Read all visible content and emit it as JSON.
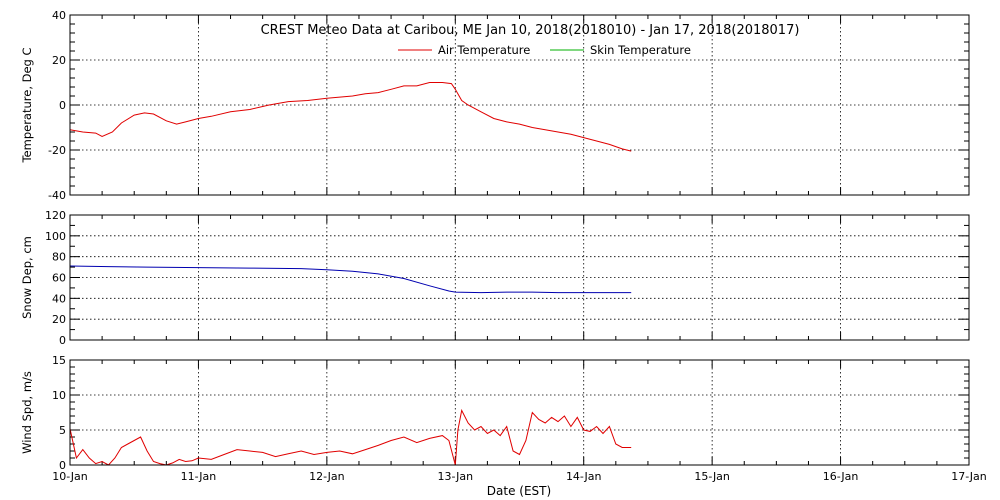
{
  "chart_data": [
    {
      "type": "line",
      "title": "CREST Meteo Data at Caribou, ME   Jan 10, 2018(2018010) - Jan 17, 2018(2018017)",
      "ylabel": "Temperature, Deg C",
      "ylim": [
        -40,
        40
      ],
      "yticks": [
        "-40",
        "-20",
        "0",
        "20",
        "40"
      ],
      "ytick_values": [
        -40,
        -20,
        0,
        20,
        40
      ],
      "grid": true,
      "legend": "top-center",
      "series": [
        {
          "name": "Air Temperature",
          "color": "#e00000",
          "x": [
            10.0,
            10.1,
            10.2,
            10.25,
            10.33,
            10.4,
            10.5,
            10.58,
            10.65,
            10.75,
            10.83,
            10.9,
            11.0,
            11.1,
            11.25,
            11.4,
            11.55,
            11.7,
            11.85,
            12.0,
            12.1,
            12.2,
            12.3,
            12.4,
            12.5,
            12.6,
            12.7,
            12.8,
            12.9,
            12.97,
            13.0,
            13.05,
            13.1,
            13.2,
            13.3,
            13.4,
            13.5,
            13.6,
            13.7,
            13.8,
            13.9,
            14.0,
            14.1,
            14.2,
            14.3,
            14.37
          ],
          "values": [
            -11,
            -12,
            -12.5,
            -14,
            -12,
            -8,
            -4.5,
            -3.5,
            -4,
            -7,
            -8.5,
            -7.5,
            -6,
            -5,
            -3,
            -2,
            0,
            1.5,
            2,
            3,
            3.5,
            4,
            5,
            5.5,
            7,
            8.5,
            8.5,
            10,
            10,
            9.5,
            7,
            2,
            0,
            -3,
            -6,
            -7.5,
            -8.5,
            -10,
            -11,
            -12,
            -13,
            -14.5,
            -16,
            -17.5,
            -19.5,
            -20.5
          ]
        },
        {
          "name": "Skin Temperature",
          "color": "#00b000",
          "x": [],
          "values": []
        }
      ]
    },
    {
      "type": "line",
      "ylabel": "Snow Dep, cm",
      "ylim": [
        0,
        120
      ],
      "yticks": [
        "0",
        "20",
        "40",
        "60",
        "80",
        "100",
        "120"
      ],
      "ytick_values": [
        0,
        20,
        40,
        60,
        80,
        100,
        120
      ],
      "grid": true,
      "series": [
        {
          "color": "#0000b0",
          "x": [
            10.0,
            10.3,
            10.6,
            11.0,
            11.4,
            11.8,
            12.0,
            12.2,
            12.4,
            12.6,
            12.8,
            12.95,
            13.0,
            13.2,
            13.4,
            13.6,
            13.8,
            14.0,
            14.2,
            14.37
          ],
          "values": [
            71,
            70.5,
            70,
            69.5,
            69,
            68.5,
            67.5,
            66,
            63.5,
            59,
            52,
            47,
            46,
            45.5,
            46,
            46,
            45.5,
            45.5,
            45.5,
            45.5
          ]
        }
      ]
    },
    {
      "type": "line",
      "ylabel": "Wind Spd, m/s",
      "xlabel": "Date (EST)",
      "ylim": [
        0,
        15
      ],
      "yticks": [
        "0",
        "5",
        "10",
        "15"
      ],
      "ytick_values": [
        0,
        5,
        10,
        15
      ],
      "categories": [
        "10-Jan",
        "11-Jan",
        "12-Jan",
        "13-Jan",
        "14-Jan",
        "15-Jan",
        "16-Jan",
        "17-Jan"
      ],
      "xlim": [
        10,
        17
      ],
      "grid": true,
      "series": [
        {
          "color": "#e00000",
          "x": [
            10.0,
            10.02,
            10.05,
            10.1,
            10.15,
            10.2,
            10.25,
            10.3,
            10.35,
            10.4,
            10.45,
            10.5,
            10.55,
            10.6,
            10.65,
            10.7,
            10.75,
            10.8,
            10.85,
            10.9,
            10.95,
            11.0,
            11.1,
            11.2,
            11.3,
            11.4,
            11.5,
            11.6,
            11.7,
            11.8,
            11.9,
            12.0,
            12.1,
            12.2,
            12.3,
            12.4,
            12.5,
            12.6,
            12.7,
            12.8,
            12.9,
            12.95,
            13.0,
            13.02,
            13.05,
            13.1,
            13.15,
            13.2,
            13.25,
            13.3,
            13.35,
            13.4,
            13.45,
            13.5,
            13.55,
            13.6,
            13.65,
            13.7,
            13.75,
            13.8,
            13.85,
            13.9,
            13.95,
            14.0,
            14.05,
            14.1,
            14.15,
            14.2,
            14.25,
            14.3,
            14.37
          ],
          "values": [
            5.2,
            3.5,
            1.0,
            2.2,
            1.0,
            0.2,
            0.5,
            0.0,
            1.0,
            2.5,
            3.0,
            3.5,
            4.0,
            2.0,
            0.5,
            0.2,
            0.0,
            0.3,
            0.8,
            0.5,
            0.6,
            1.0,
            0.8,
            1.5,
            2.2,
            2.0,
            1.8,
            1.2,
            1.6,
            2.0,
            1.5,
            1.8,
            2.0,
            1.6,
            2.2,
            2.8,
            3.5,
            4.0,
            3.2,
            3.8,
            4.2,
            3.5,
            0.0,
            5.0,
            7.8,
            6.0,
            5.0,
            5.5,
            4.5,
            5.0,
            4.2,
            5.5,
            2.0,
            1.5,
            3.5,
            7.5,
            6.5,
            6.0,
            6.8,
            6.2,
            7.0,
            5.5,
            6.8,
            5.0,
            4.8,
            5.5,
            4.5,
            5.5,
            3.0,
            2.5,
            2.5
          ]
        }
      ]
    }
  ]
}
